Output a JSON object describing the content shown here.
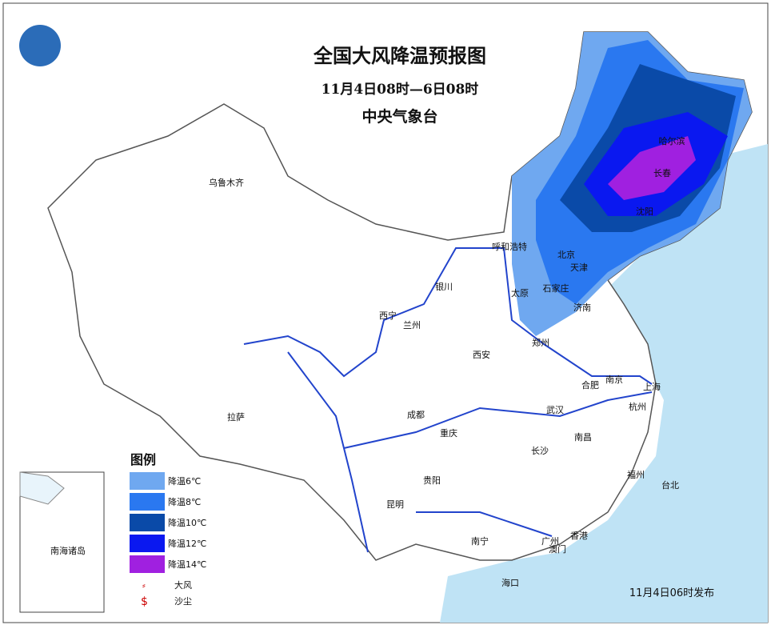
{
  "header": {
    "title": "全国大风降温预报图",
    "period": "11月4日08时—6日08时",
    "agency": "中央气象台"
  },
  "cities": [
    "乌鲁木齐",
    "拉萨",
    "西宁",
    "兰州",
    "银川",
    "呼和浩特",
    "北京",
    "天津",
    "石家庄",
    "太原",
    "济南",
    "郑州",
    "西安",
    "成都",
    "重庆",
    "武汉",
    "合肥",
    "南京",
    "上海",
    "杭州",
    "长沙",
    "南昌",
    "福州",
    "台北",
    "贵阳",
    "昆明",
    "南宁",
    "广州",
    "香港",
    "澳门",
    "海口",
    "哈尔滨",
    "长春",
    "沈阳"
  ],
  "legend": {
    "title": "图例",
    "items": [
      {
        "label": "降温6℃",
        "color": "#6fa8f0"
      },
      {
        "label": "降温8℃",
        "color": "#2a78f0"
      },
      {
        "label": "降温10℃",
        "color": "#0a4aa8"
      },
      {
        "label": "降温12℃",
        "color": "#0a18f0"
      },
      {
        "label": "降温14℃",
        "color": "#a020e0"
      }
    ],
    "wind": "大风",
    "dust": "沙尘"
  },
  "inset": "南海诸岛",
  "issued": "11月4日06时发布"
}
